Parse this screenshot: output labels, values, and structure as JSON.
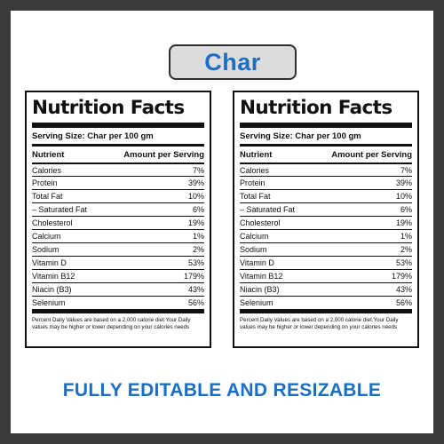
{
  "title": "Char",
  "footer": "FULLY EDITABLE AND RESIZABLE",
  "label": {
    "heading": "Nutrition Facts",
    "serving": "Serving Size: Char per 100 gm",
    "col_nutrient": "Nutrient",
    "col_amount": "Amount per Serving",
    "rows": [
      {
        "name": "Calories",
        "value": "7%"
      },
      {
        "name": "Protein",
        "value": "39%"
      },
      {
        "name": "Total Fat",
        "value": "10%"
      },
      {
        "name": "– Saturated Fat",
        "value": "6%"
      },
      {
        "name": "Cholesterol",
        "value": "19%"
      },
      {
        "name": "Calcium",
        "value": "1%"
      },
      {
        "name": "Sodium",
        "value": "2%"
      },
      {
        "name": "Vitamin D",
        "value": "53%"
      },
      {
        "name": "Vitamin B12",
        "value": "179%"
      },
      {
        "name": "Niacin (B3)",
        "value": "43%"
      },
      {
        "name": "Selenium",
        "value": "56%"
      }
    ],
    "footnote": "Percent Daily Values are based on a 2,000 calorie diet.Your Daily values may be higher or lower depending on your calories needs"
  },
  "colors": {
    "accent": "#1a6fc4",
    "border": "#111111",
    "pill_bg": "#dcdcdc",
    "outer_bg": "#3a3a3a"
  }
}
